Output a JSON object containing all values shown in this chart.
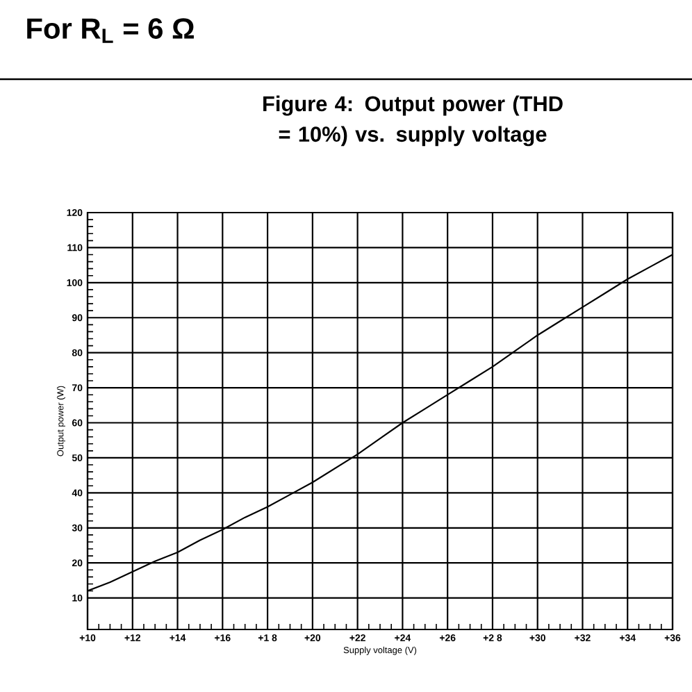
{
  "chart_data": {
    "type": "line",
    "title": "For R$_{L}$ = 6 Ω",
    "subtitle": "Figure 4: Output power (THD = 10%) vs. supply voltage",
    "xlabel": "Supply voltage (V)",
    "ylabel": "Output power (W)",
    "x": [
      10,
      11,
      12,
      13,
      14,
      15,
      16,
      17,
      18,
      19,
      20,
      21,
      22,
      23,
      24,
      25,
      26,
      27,
      28,
      29,
      30,
      31,
      32,
      33,
      34,
      35,
      36
    ],
    "series": [
      {
        "color": "#000000",
        "values": [
          12,
          14.5,
          17.5,
          20.5,
          23,
          26.5,
          29.5,
          33,
          36,
          39.5,
          43,
          47,
          51,
          55.5,
          60,
          64,
          68,
          72,
          76,
          80.5,
          85,
          89,
          93,
          97,
          101,
          104.5,
          108
        ]
      }
    ],
    "xlim": [
      10,
      36
    ],
    "ylim": [
      1,
      120
    ],
    "xticks": [
      {
        "value": 10,
        "label": "+10"
      },
      {
        "value": 12,
        "label": "+12"
      },
      {
        "value": 14,
        "label": "+14"
      },
      {
        "value": 16,
        "label": "+16"
      },
      {
        "value": 18,
        "label": "+1 8"
      },
      {
        "value": 20,
        "label": "+20"
      },
      {
        "value": 22,
        "label": "+22"
      },
      {
        "value": 24,
        "label": "+24"
      },
      {
        "value": 26,
        "label": "+26"
      },
      {
        "value": 28,
        "label": "+2 8"
      },
      {
        "value": 30,
        "label": "+30"
      },
      {
        "value": 32,
        "label": "+32"
      },
      {
        "value": 34,
        "label": "+34"
      },
      {
        "value": 36,
        "label": "+36"
      }
    ],
    "yticks": [
      10,
      20,
      30,
      40,
      50,
      60,
      70,
      80,
      90,
      100,
      110,
      120
    ],
    "grid": true
  }
}
